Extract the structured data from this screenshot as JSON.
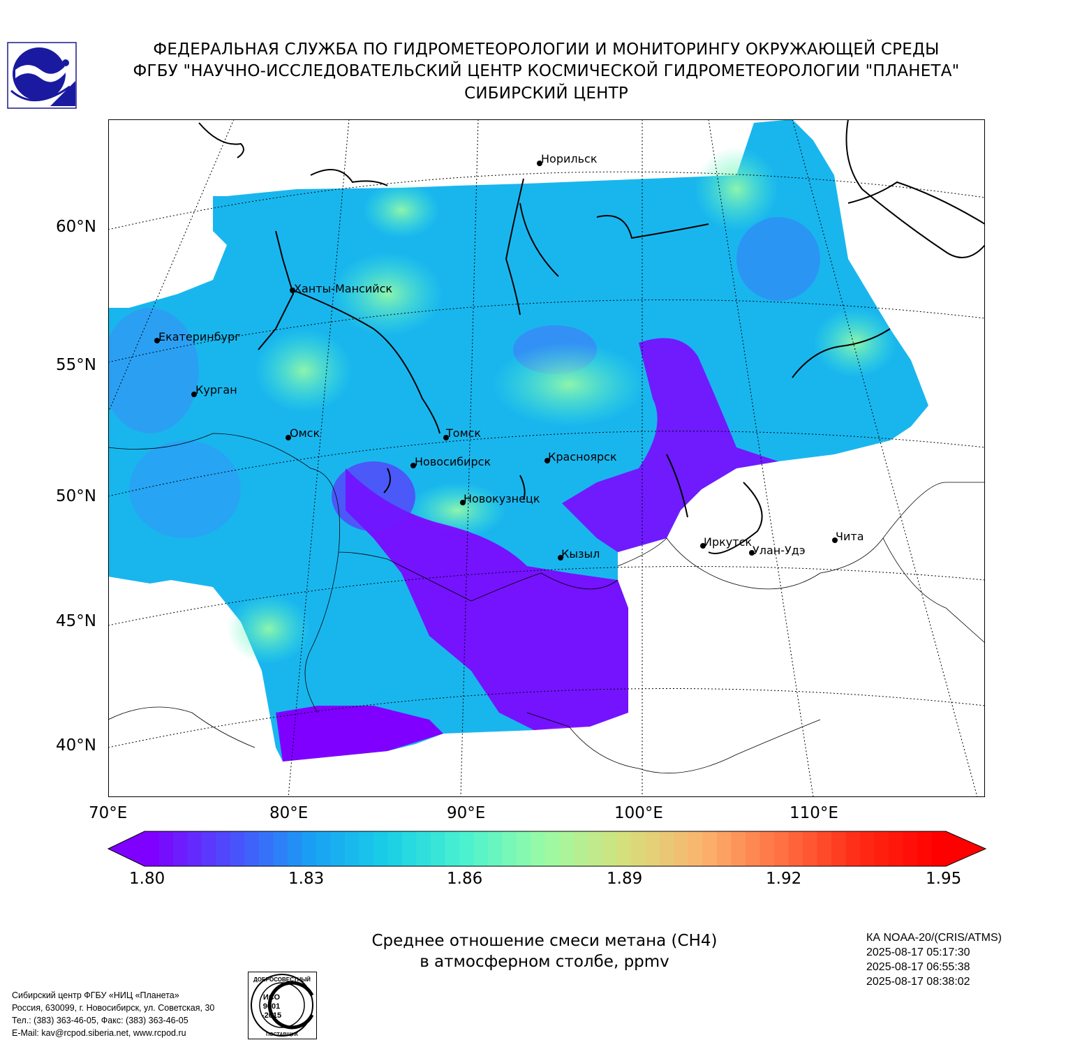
{
  "header": {
    "line1": "ФЕДЕРАЛЬНАЯ СЛУЖБА ПО ГИДРОМЕТЕОРОЛОГИИ И МОНИТОРИНГУ ОКРУЖАЮЩЕЙ СРЕДЫ",
    "line2": "ФГБУ \"НАУЧНО-ИССЛЕДОВАТЕЛЬСКИЙ ЦЕНТР КОСМИЧЕСКОЙ ГИДРОМЕТЕОРОЛОГИИ \"ПЛАНЕТА\"",
    "line3": "СИБИРСКИЙ ЦЕНТР"
  },
  "map": {
    "lat_labels": [
      "60°N",
      "55°N",
      "50°N",
      "45°N",
      "40°N"
    ],
    "lon_labels": [
      "70°E",
      "80°E",
      "90°E",
      "100°E",
      "110°E"
    ],
    "cities": [
      {
        "name": "Норильск"
      },
      {
        "name": "Ханты-Мансийск"
      },
      {
        "name": "Екатеринбург"
      },
      {
        "name": "Курган"
      },
      {
        "name": "Омск"
      },
      {
        "name": "Томск"
      },
      {
        "name": "Новосибирск"
      },
      {
        "name": "Красноярск"
      },
      {
        "name": "Новокузнецк"
      },
      {
        "name": "Кызыл"
      },
      {
        "name": "Иркутск"
      },
      {
        "name": "Улан-Удэ"
      },
      {
        "name": "Чита"
      }
    ]
  },
  "colorbar": {
    "ticks": [
      "1.80",
      "1.83",
      "1.86",
      "1.89",
      "1.92",
      "1.95"
    ],
    "min": 1.8,
    "max": 1.95,
    "colors": [
      "#7f00ff",
      "#4d4dfc",
      "#1a9ef5",
      "#19cfe6",
      "#4cf2cf",
      "#9bfba4",
      "#d5e07c",
      "#fbb36e",
      "#ff7042",
      "#ff2a15",
      "#ff0000"
    ]
  },
  "caption": {
    "line1": "Среднее отношение смеси метана (CH4)",
    "line2": "в атмосферном столбе, ppmv"
  },
  "satellite": {
    "name": "КА NOAA-20/(CRIS/ATMS)",
    "times": [
      "2025-08-17 05:17:30",
      "2025-08-17 06:55:38",
      "2025-08-17 08:38:02"
    ]
  },
  "contacts": {
    "line1": "Сибирский центр ФГБУ «НИЦ «Планета»",
    "line2": "Россия, 630099, г. Новосибирск, ул. Советская, 30",
    "line3": "Тел.: (383) 363-46-05, Факс: (383) 363-46-05",
    "line4": "E-Mail: kav@rcpod.siberia.net, www.rcpod.ru"
  },
  "iso": {
    "top_text": "ДОБРОСОВЕСТНЫЙ",
    "code1": "ИСО",
    "code2": "9001",
    "code3": "-2015",
    "bottom_text": "ПОСТАВЩИК"
  }
}
